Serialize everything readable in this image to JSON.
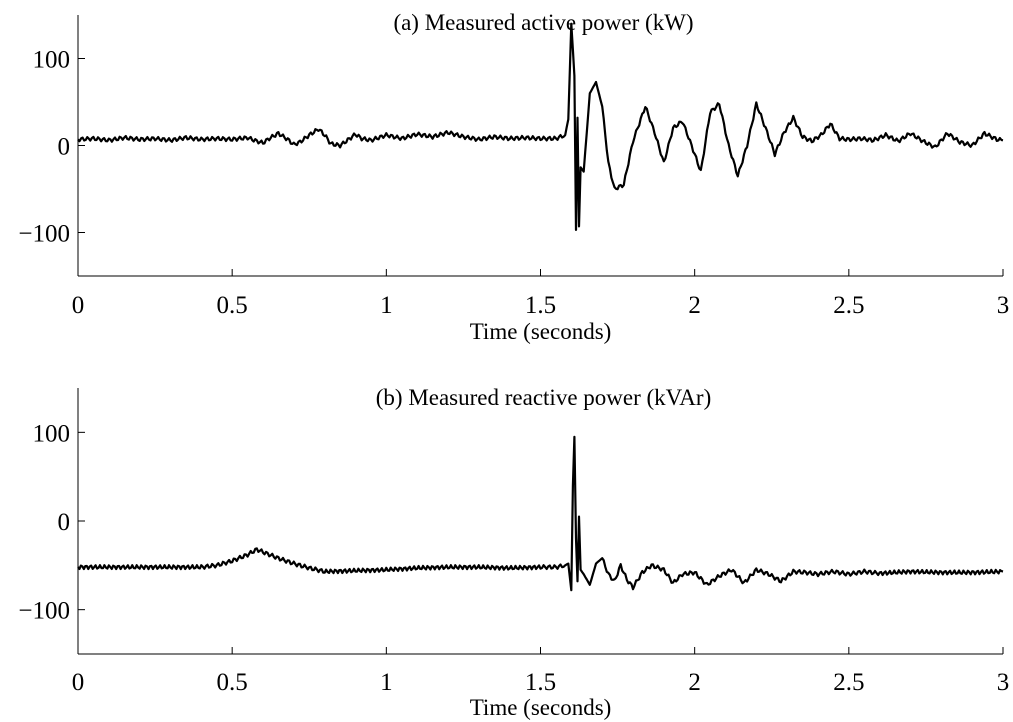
{
  "chart_data": [
    {
      "type": "line",
      "title": "(a) Measured active power (kW)",
      "xlabel": "Time (seconds)",
      "ylabel": "",
      "xlim": [
        0,
        3
      ],
      "ylim": [
        -150,
        150
      ],
      "xticks": [
        0,
        0.5,
        1,
        1.5,
        2,
        2.5,
        3
      ],
      "xtick_labels": [
        "0",
        "0.5",
        "1",
        "1.5",
        "2",
        "2.5",
        "3"
      ],
      "yticks": [
        -100,
        0,
        100
      ],
      "ytick_labels": [
        "−100",
        "0",
        "100"
      ],
      "grid": false,
      "series": [
        {
          "x": [
            0,
            0.05,
            0.1,
            0.15,
            0.2,
            0.25,
            0.3,
            0.35,
            0.4,
            0.45,
            0.5,
            0.55,
            0.58,
            0.6,
            0.62,
            0.65,
            0.68,
            0.7,
            0.72,
            0.75,
            0.78,
            0.8,
            0.82,
            0.85,
            0.87,
            0.9,
            0.92,
            0.95,
            1.0,
            1.05,
            1.1,
            1.15,
            1.2,
            1.25,
            1.3,
            1.35,
            1.4,
            1.45,
            1.5,
            1.55,
            1.58,
            1.59,
            1.6,
            1.61,
            1.615,
            1.62,
            1.625,
            1.63,
            1.64,
            1.65,
            1.66,
            1.68,
            1.7,
            1.72,
            1.74,
            1.77,
            1.8,
            1.84,
            1.87,
            1.9,
            1.93,
            1.96,
            1.99,
            2.02,
            2.05,
            2.08,
            2.11,
            2.14,
            2.17,
            2.2,
            2.23,
            2.26,
            2.29,
            2.32,
            2.35,
            2.38,
            2.41,
            2.44,
            2.47,
            2.5,
            2.54,
            2.58,
            2.62,
            2.66,
            2.7,
            2.74,
            2.78,
            2.82,
            2.86,
            2.9,
            2.94,
            2.98,
            3.0
          ],
          "y": [
            7,
            8,
            6,
            9,
            7,
            8,
            6,
            9,
            7,
            8,
            7,
            9,
            5,
            3,
            8,
            14,
            7,
            1,
            4,
            12,
            19,
            12,
            2,
            0,
            5,
            13,
            8,
            6,
            12,
            8,
            13,
            10,
            15,
            10,
            7,
            10,
            8,
            9,
            8,
            8,
            12,
            30,
            140,
            80,
            -97,
            32,
            -93,
            -25,
            -30,
            15,
            60,
            73,
            45,
            -20,
            -50,
            -45,
            5,
            45,
            15,
            -20,
            20,
            28,
            0,
            -30,
            38,
            48,
            0,
            -35,
            0,
            48,
            20,
            -10,
            15,
            32,
            10,
            5,
            12,
            25,
            8,
            7,
            8,
            6,
            12,
            5,
            14,
            5,
            -2,
            14,
            4,
            0,
            14,
            7,
            6
          ]
        }
      ]
    },
    {
      "type": "line",
      "title": "(b) Measured reactive power (kVAr)",
      "xlabel": "Time (seconds)",
      "ylabel": "",
      "xlim": [
        0,
        3
      ],
      "ylim": [
        -150,
        150
      ],
      "xticks": [
        0,
        0.5,
        1,
        1.5,
        2,
        2.5,
        3
      ],
      "xtick_labels": [
        "0",
        "0.5",
        "1",
        "1.5",
        "2",
        "2.5",
        "3"
      ],
      "yticks": [
        -100,
        0,
        100
      ],
      "ytick_labels": [
        "−100",
        "0",
        "100"
      ],
      "grid": false,
      "series": [
        {
          "x": [
            0,
            0.1,
            0.2,
            0.3,
            0.4,
            0.45,
            0.5,
            0.55,
            0.58,
            0.6,
            0.65,
            0.7,
            0.75,
            0.8,
            0.9,
            1.0,
            1.1,
            1.2,
            1.3,
            1.4,
            1.5,
            1.55,
            1.58,
            1.59,
            1.6,
            1.605,
            1.61,
            1.615,
            1.62,
            1.625,
            1.63,
            1.64,
            1.66,
            1.68,
            1.7,
            1.72,
            1.74,
            1.76,
            1.78,
            1.8,
            1.83,
            1.86,
            1.9,
            1.93,
            1.96,
            2.0,
            2.04,
            2.08,
            2.12,
            2.16,
            2.2,
            2.24,
            2.28,
            2.32,
            2.36,
            2.4,
            2.45,
            2.5,
            2.55,
            2.6,
            2.7,
            2.8,
            2.9,
            3.0
          ],
          "y": [
            -52,
            -52,
            -52,
            -52,
            -52,
            -50,
            -45,
            -38,
            -32,
            -35,
            -42,
            -48,
            -53,
            -57,
            -56,
            -55,
            -53,
            -52,
            -52,
            -53,
            -52,
            -52,
            -50,
            -48,
            -78,
            40,
            95,
            -20,
            -68,
            5,
            -55,
            -60,
            -72,
            -48,
            -42,
            -60,
            -68,
            -50,
            -66,
            -75,
            -58,
            -50,
            -55,
            -70,
            -60,
            -58,
            -72,
            -62,
            -55,
            -70,
            -55,
            -60,
            -68,
            -57,
            -58,
            -60,
            -57,
            -60,
            -57,
            -59,
            -57,
            -58,
            -58,
            -57
          ]
        }
      ]
    }
  ]
}
